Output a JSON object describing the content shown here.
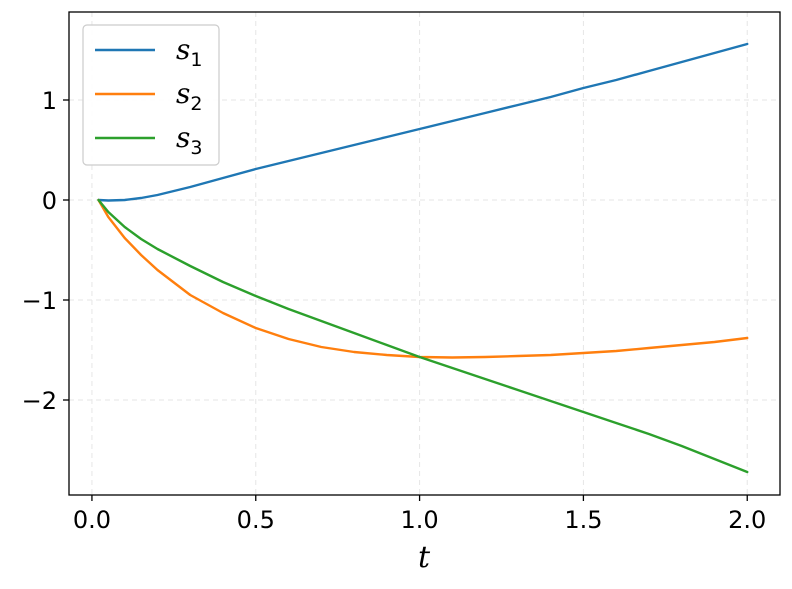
{
  "chart_data": {
    "type": "line",
    "xlabel": "t",
    "ylabel": "",
    "xlim": [
      -0.07,
      2.1
    ],
    "ylim": [
      -2.95,
      1.88
    ],
    "xticks": [
      0.0,
      0.5,
      1.0,
      1.5,
      2.0
    ],
    "xtick_labels": [
      "0.0",
      "0.5",
      "1.0",
      "1.5",
      "2.0"
    ],
    "yticks": [
      1,
      0,
      -1,
      -2
    ],
    "ytick_labels": [
      "1",
      "0",
      "−1",
      "−2"
    ],
    "grid": true,
    "legend_position": "top-left",
    "series": [
      {
        "name": "s",
        "subscript": "1",
        "color": "#1f77b4",
        "x": [
          0.02,
          0.05,
          0.1,
          0.15,
          0.2,
          0.3,
          0.4,
          0.5,
          0.6,
          0.7,
          0.8,
          0.9,
          1.0,
          1.1,
          1.2,
          1.3,
          1.4,
          1.5,
          1.6,
          1.7,
          1.8,
          1.9,
          2.0
        ],
        "y": [
          0.0,
          -0.005,
          0.0,
          0.02,
          0.05,
          0.13,
          0.22,
          0.31,
          0.39,
          0.47,
          0.55,
          0.63,
          0.71,
          0.79,
          0.87,
          0.95,
          1.03,
          1.12,
          1.2,
          1.29,
          1.38,
          1.47,
          1.56
        ]
      },
      {
        "name": "s",
        "subscript": "2",
        "color": "#ff7f0e",
        "x": [
          0.02,
          0.05,
          0.1,
          0.15,
          0.2,
          0.3,
          0.4,
          0.5,
          0.6,
          0.7,
          0.8,
          0.9,
          1.0,
          1.1,
          1.2,
          1.3,
          1.4,
          1.5,
          1.6,
          1.7,
          1.8,
          1.9,
          2.0
        ],
        "y": [
          0.0,
          -0.17,
          -0.38,
          -0.55,
          -0.7,
          -0.95,
          -1.13,
          -1.28,
          -1.39,
          -1.47,
          -1.52,
          -1.55,
          -1.57,
          -1.575,
          -1.57,
          -1.56,
          -1.55,
          -1.53,
          -1.51,
          -1.48,
          -1.45,
          -1.42,
          -1.38
        ]
      },
      {
        "name": "s",
        "subscript": "3",
        "color": "#2ca02c",
        "x": [
          0.02,
          0.05,
          0.1,
          0.15,
          0.2,
          0.3,
          0.4,
          0.5,
          0.6,
          0.7,
          0.8,
          0.9,
          1.0,
          1.1,
          1.2,
          1.3,
          1.4,
          1.5,
          1.6,
          1.7,
          1.8,
          1.9,
          2.0
        ],
        "y": [
          0.0,
          -0.12,
          -0.27,
          -0.39,
          -0.49,
          -0.66,
          -0.82,
          -0.96,
          -1.09,
          -1.21,
          -1.33,
          -1.45,
          -1.57,
          -1.68,
          -1.79,
          -1.9,
          -2.01,
          -2.12,
          -2.23,
          -2.34,
          -2.46,
          -2.59,
          -2.72
        ]
      }
    ]
  }
}
